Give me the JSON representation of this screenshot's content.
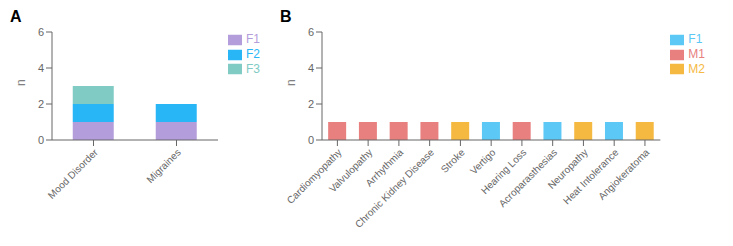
{
  "chart_data": [
    {
      "type": "bar",
      "title": "A",
      "categories": [
        "Mood Disorder",
        "Migraines"
      ],
      "series": [
        {
          "name": "F1",
          "color": "#b39ddb",
          "values": [
            1,
            1
          ]
        },
        {
          "name": "F2",
          "color": "#29b6f6",
          "values": [
            1,
            1
          ]
        },
        {
          "name": "F3",
          "color": "#80cbc4",
          "values": [
            1,
            0
          ]
        }
      ],
      "stacked": true,
      "ylabel": "n",
      "ylim": [
        0,
        6
      ],
      "yticks": [
        0,
        2,
        4,
        6
      ],
      "legend": "right"
    },
    {
      "type": "bar",
      "title": "B",
      "categories": [
        "Cardiomyopathy",
        "Valvulopathy",
        "Arrhythmia",
        "Chronic Kidney Disease",
        "Stroke",
        "Vertigo",
        "Hearing Loss",
        "Acroparasthesias",
        "Neuropathy",
        "Heat Intolerance",
        "Angiokeratoma"
      ],
      "series": [
        {
          "name": "M1",
          "color": "#e88080",
          "values": [
            1,
            1,
            1,
            1,
            null,
            null,
            1,
            null,
            null,
            null,
            null
          ]
        },
        {
          "name": "M2",
          "color": "#f5b942",
          "values": [
            null,
            null,
            null,
            null,
            1,
            null,
            null,
            null,
            1,
            null,
            1
          ]
        },
        {
          "name": "F1",
          "color": "#5bc8f5",
          "values": [
            null,
            null,
            null,
            null,
            null,
            1,
            null,
            1,
            null,
            1,
            null
          ]
        }
      ],
      "stacked": true,
      "ylabel": "n",
      "ylim": [
        0,
        6
      ],
      "yticks": [
        0,
        2,
        4,
        6
      ],
      "legend": "right"
    }
  ]
}
